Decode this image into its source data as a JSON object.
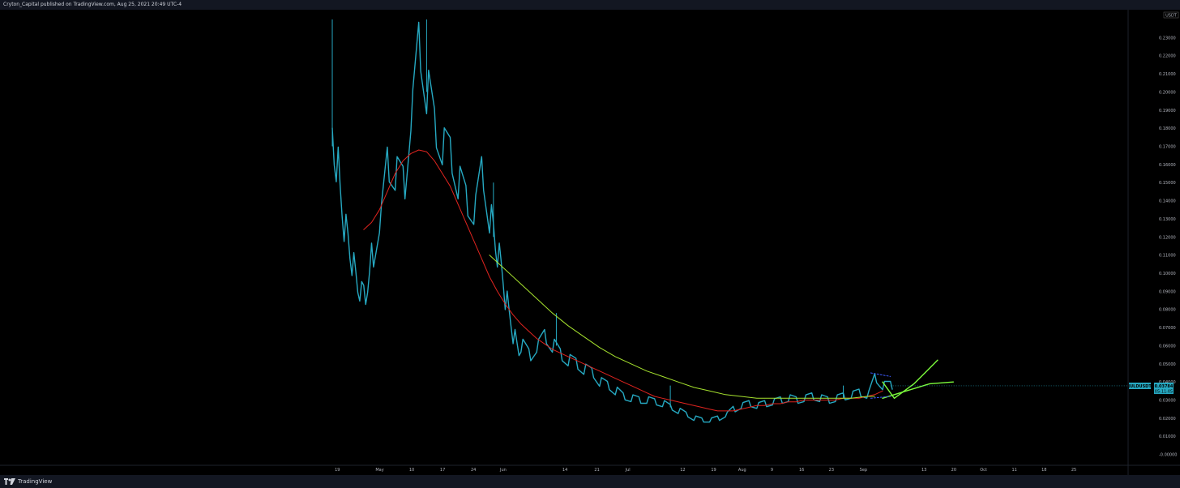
{
  "header": {
    "publisher_text": "Cryton_Capital published on TradingView.com, Aug 25, 2021 20:49 UTC-4"
  },
  "footer": {
    "brand_name": "TradingView",
    "logo_icon": "tradingview-logo-icon"
  },
  "colors": {
    "background": "#000000",
    "bar": "#131722",
    "candle": "#26a9c2",
    "ma_fast": "#e0241f",
    "ma_slow": "#a6e22e",
    "projection": "#7cfc3c",
    "wedge": "#3d5afe"
  },
  "price_tag": {
    "symbol": "JULDUSDT",
    "price": "0.03784",
    "countdown": "05:11:05"
  },
  "chart_data": {
    "type": "line",
    "title": "",
    "xlabel": "",
    "ylabel": "",
    "ylim": [
      -0.006,
      0.24
    ],
    "yaxis_unit_label": "USDT",
    "yticks": [
      "0.23000",
      "0.22000",
      "0.21000",
      "0.20000",
      "0.19000",
      "0.18000",
      "0.17000",
      "0.16000",
      "0.15000",
      "0.14000",
      "0.13000",
      "0.12000",
      "0.11000",
      "0.10000",
      "0.09000",
      "0.08000",
      "0.07000",
      "0.06000",
      "0.05000",
      "0.04000",
      "0.03000",
      "0.02000",
      "0.01000",
      "-0.00000"
    ],
    "xticks": [
      "19",
      "May",
      "10",
      "17",
      "24",
      "Jun",
      "14",
      "21",
      "Jul",
      "12",
      "19",
      "Aug",
      "9",
      "16",
      "23",
      "Sep",
      "13",
      "20",
      "Oct",
      "11",
      "18",
      "25"
    ],
    "series": [
      {
        "key": "price",
        "x": [
          0,
          1,
          2,
          3,
          4,
          5,
          6,
          7,
          8,
          9,
          10,
          12,
          14,
          16,
          18,
          20,
          22,
          24,
          26,
          28,
          30,
          32,
          34,
          36,
          38,
          40,
          41,
          42,
          43,
          44,
          45,
          46,
          47,
          48,
          50,
          52,
          54,
          56,
          58,
          60,
          62,
          64,
          66,
          68,
          70,
          72,
          74,
          76,
          78,
          80,
          82,
          84,
          86,
          88,
          90,
          92,
          94,
          96,
          98,
          100,
          102,
          104,
          106,
          108,
          110,
          112,
          114,
          116,
          118,
          120,
          122,
          124,
          126,
          128,
          130,
          132,
          134,
          136,
          138,
          140,
          142
        ],
        "y": [
          0.17,
          0.16,
          0.14,
          0.125,
          0.115,
          0.105,
          0.095,
          0.09,
          0.088,
          0.095,
          0.11,
          0.13,
          0.16,
          0.155,
          0.15,
          0.19,
          0.225,
          0.2,
          0.18,
          0.17,
          0.165,
          0.15,
          0.14,
          0.135,
          0.155,
          0.13,
          0.12,
          0.11,
          0.1,
          0.085,
          0.075,
          0.065,
          0.058,
          0.06,
          0.055,
          0.06,
          0.065,
          0.06,
          0.055,
          0.052,
          0.05,
          0.047,
          0.045,
          0.04,
          0.038,
          0.035,
          0.032,
          0.031,
          0.03,
          0.03,
          0.029,
          0.028,
          0.026,
          0.024,
          0.022,
          0.02,
          0.019,
          0.019,
          0.02,
          0.022,
          0.025,
          0.027,
          0.028,
          0.027,
          0.028,
          0.029,
          0.03,
          0.031,
          0.03,
          0.031,
          0.032,
          0.031,
          0.03,
          0.031,
          0.032,
          0.033,
          0.034,
          0.033,
          0.042,
          0.038,
          0.038
        ]
      },
      {
        "key": "ma_fast",
        "x": [
          8,
          10,
          12,
          14,
          16,
          18,
          20,
          22,
          24,
          26,
          28,
          30,
          32,
          34,
          36,
          38,
          40,
          42,
          44,
          46,
          48,
          50,
          52,
          54,
          56,
          58,
          60,
          62,
          64,
          66,
          68,
          70,
          72,
          74,
          76,
          78,
          80,
          82,
          84,
          86,
          88,
          90,
          92,
          94,
          96,
          98,
          100,
          102,
          104,
          106,
          108,
          110,
          112,
          114,
          116,
          118,
          120,
          122,
          124,
          126,
          128,
          130,
          132,
          134,
          136,
          138,
          140
        ],
        "y": [
          0.124,
          0.128,
          0.135,
          0.145,
          0.155,
          0.162,
          0.166,
          0.168,
          0.167,
          0.162,
          0.155,
          0.148,
          0.138,
          0.128,
          0.118,
          0.108,
          0.098,
          0.09,
          0.083,
          0.077,
          0.072,
          0.068,
          0.064,
          0.061,
          0.058,
          0.056,
          0.054,
          0.052,
          0.05,
          0.048,
          0.046,
          0.044,
          0.042,
          0.04,
          0.038,
          0.036,
          0.034,
          0.032,
          0.031,
          0.03,
          0.029,
          0.028,
          0.027,
          0.026,
          0.025,
          0.024,
          0.024,
          0.024,
          0.025,
          0.026,
          0.027,
          0.027,
          0.028,
          0.028,
          0.029,
          0.029,
          0.03,
          0.03,
          0.03,
          0.03,
          0.03,
          0.031,
          0.031,
          0.031,
          0.032,
          0.033,
          0.035
        ]
      },
      {
        "key": "ma_slow",
        "x": [
          40,
          44,
          48,
          52,
          56,
          60,
          64,
          68,
          72,
          76,
          80,
          84,
          88,
          92,
          96,
          100,
          104,
          108,
          112,
          116,
          120,
          124,
          128,
          132,
          136,
          138
        ],
        "y": [
          0.11,
          0.102,
          0.094,
          0.086,
          0.078,
          0.071,
          0.065,
          0.059,
          0.054,
          0.05,
          0.046,
          0.043,
          0.04,
          0.037,
          0.035,
          0.033,
          0.032,
          0.031,
          0.031,
          0.031,
          0.031,
          0.031,
          0.031,
          0.031,
          0.032,
          0.032
        ]
      },
      {
        "key": "projection_up",
        "x": [
          140,
          143,
          148,
          154
        ],
        "y": [
          0.04,
          0.031,
          0.039,
          0.052
        ]
      },
      {
        "key": "projection_flat",
        "x": [
          140,
          146,
          152,
          158
        ],
        "y": [
          0.031,
          0.035,
          0.039,
          0.04
        ]
      },
      {
        "key": "wedge_top",
        "x": [
          137,
          142
        ],
        "y": [
          0.045,
          0.043
        ]
      },
      {
        "key": "wedge_bottom",
        "x": [
          137,
          142
        ],
        "y": [
          0.031,
          0.032
        ]
      }
    ]
  }
}
